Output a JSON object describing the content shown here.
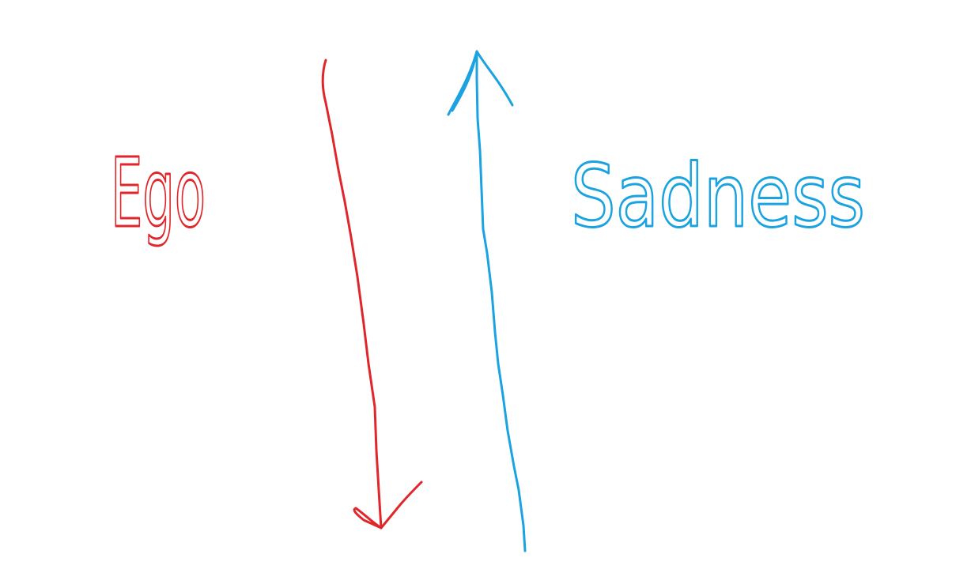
{
  "left_label": {
    "text": "Ego"
  },
  "right_label": {
    "text": "Sadness"
  }
}
